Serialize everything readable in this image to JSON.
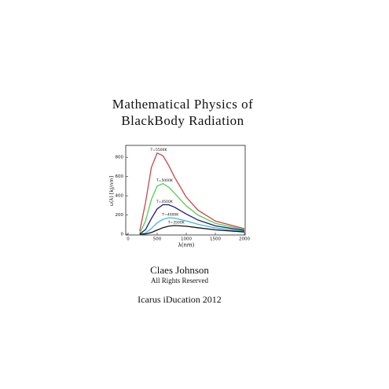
{
  "header": {
    "title": [
      "Mathematical Physics of",
      "BlackBody Radiation"
    ]
  },
  "chart_data": {
    "type": "line",
    "x": [
      200,
      300,
      400,
      500,
      600,
      700,
      800,
      1000,
      1200,
      1500,
      2000
    ],
    "series": [
      {
        "name": "T=5500K",
        "color": "#c8474a",
        "values": [
          32,
          330,
          694,
          845,
          816,
          713,
          593,
          386,
          251,
          137,
          57
        ]
      },
      {
        "name": "T=5000K",
        "color": "#4fcf4f",
        "values": [
          9,
          138,
          360,
          501,
          527,
          488,
          425,
          295,
          200,
          112,
          48
        ]
      },
      {
        "name": "T=4500K",
        "color": "#1c1c78",
        "values": [
          2,
          48,
          162,
          263,
          308,
          306,
          281,
          210,
          148,
          87,
          39
        ]
      },
      {
        "name": "T=4000K",
        "color": "#46b8d8",
        "values": [
          0,
          12,
          60,
          117,
          156,
          171,
          167,
          138,
          103,
          65,
          30
        ]
      },
      {
        "name": "T=3500K",
        "color": "#111111",
        "values": [
          0,
          2,
          17,
          43,
          68,
          84,
          90,
          83,
          67,
          45,
          23
        ]
      }
    ],
    "x_label": "λ(nm)",
    "y_label": "u(λ) [kJ/nm]",
    "xlim": [
      0,
      2000
    ],
    "xticks": [
      0,
      500,
      1000,
      1500,
      2000
    ],
    "ylim": [
      0,
      900
    ],
    "yticks": [
      0,
      200,
      400,
      600,
      800
    ]
  },
  "author": "Claes Johnson",
  "rights": "All Rights Reserved",
  "publisher": "Icarus iDucation 2012"
}
